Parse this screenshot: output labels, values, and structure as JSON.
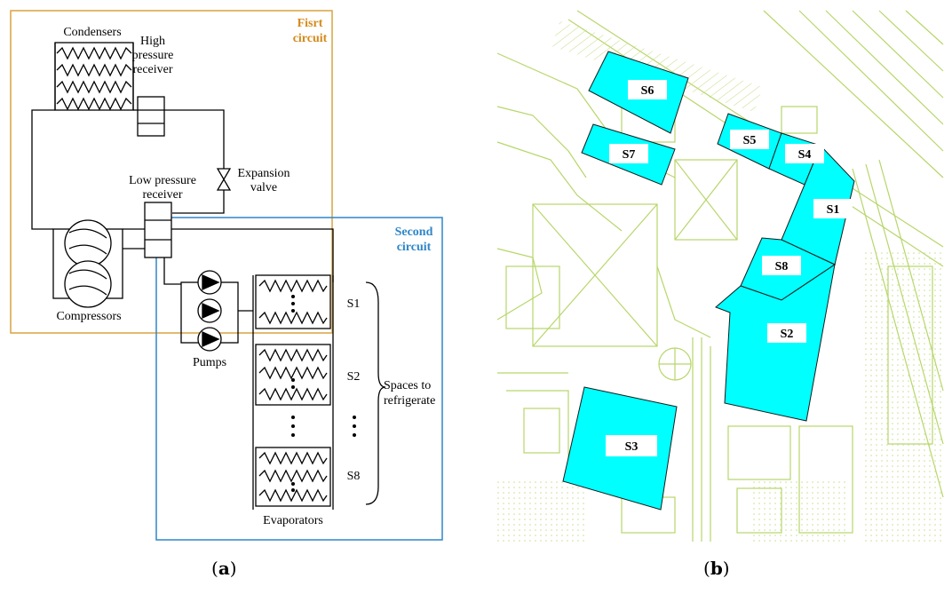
{
  "panel_a": {
    "first_circuit_label": [
      "Fisrt",
      "circuit"
    ],
    "second_circuit_label": [
      "Second",
      "circuit"
    ],
    "condensers": "Condensers",
    "high_pressure_receiver": [
      "High",
      "pressure",
      "receiver"
    ],
    "expansion_valve": [
      "Expansion",
      "valve"
    ],
    "low_pressure_receiver": [
      "Low pressure",
      "receiver"
    ],
    "compressors": "Compressors",
    "pumps": "Pumps",
    "evaporators": "Evaporators",
    "spaces_to_refrigerate": [
      "Spaces to",
      "refrigerate"
    ],
    "space_labels": [
      "S1",
      "S2",
      "S8"
    ],
    "caption": "a"
  },
  "panel_b": {
    "zones": [
      "S1",
      "S2",
      "S3",
      "S4",
      "S5",
      "S6",
      "S7",
      "S8"
    ],
    "caption": "b"
  },
  "colors": {
    "first_circuit": "#d9a441",
    "first_circuit_text": "#d48a1a",
    "second_circuit": "#2f86c8",
    "zone_fill": "#00ffff",
    "map_line": "#b7d66a"
  }
}
